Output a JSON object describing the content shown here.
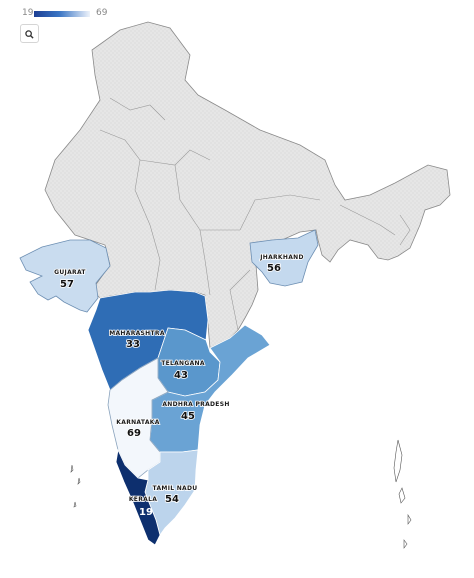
{
  "legend": {
    "min": "19",
    "max": "69",
    "color_low": "#1c3f94",
    "color_high": "#eef3fb"
  },
  "controls": {
    "zoom_icon": "search-icon"
  },
  "colors": {
    "no_data_fill": "#e4e4e4",
    "no_data_pattern": "#cfcfcf",
    "border": "#8a8a8a"
  },
  "regions": [
    {
      "name": "GUJARAT",
      "value": "57",
      "fill": "#c9dcef"
    },
    {
      "name": "MAHARASHTRA",
      "value": "33",
      "fill": "#2f6db5"
    },
    {
      "name": "TELANGANA",
      "value": "43",
      "fill": "#5a97cc"
    },
    {
      "name": "ANDHRA PRADESH",
      "value": "45",
      "fill": "#6aa3d4"
    },
    {
      "name": "KARNATAKA",
      "value": "69",
      "fill": "#f3f7fc"
    },
    {
      "name": "TAMIL NADU",
      "value": "54",
      "fill": "#bcd4ec"
    },
    {
      "name": "KERALA",
      "value": "19",
      "fill": "#0d2f6e"
    },
    {
      "name": "JHARKHAND",
      "value": "56",
      "fill": "#c4d9ee"
    }
  ]
}
